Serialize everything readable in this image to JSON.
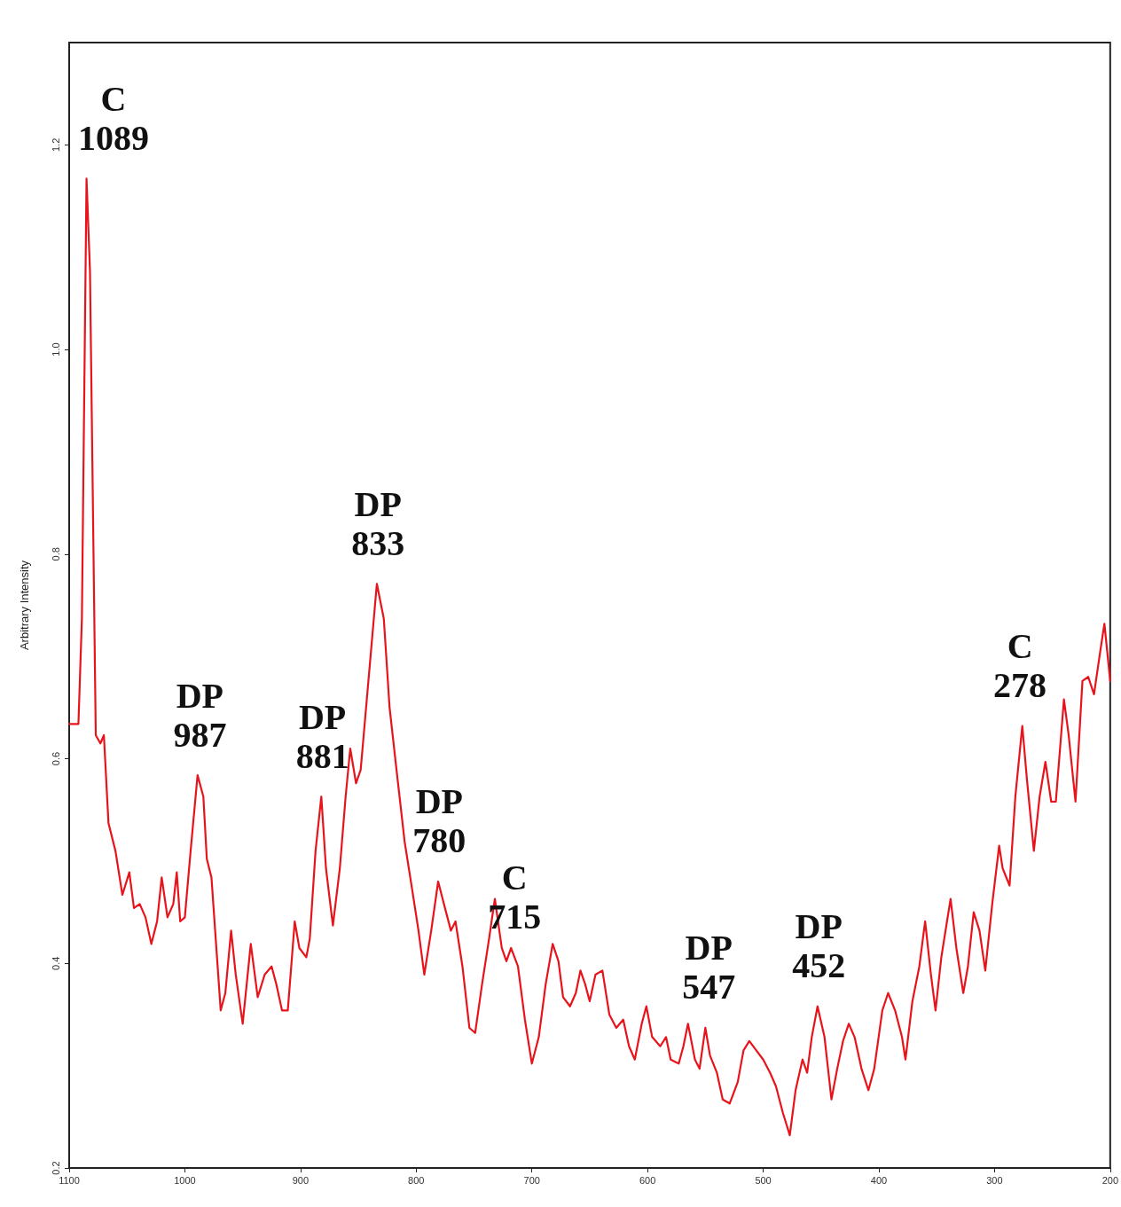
{
  "chart_data": {
    "type": "line",
    "ylabel": "Arbitrary Intensity",
    "x": [
      1100,
      1092,
      1089,
      1085,
      1082,
      1077,
      1073,
      1070,
      1066,
      1060,
      1054,
      1048,
      1044,
      1039,
      1034,
      1029,
      1024,
      1020,
      1015,
      1010,
      1007,
      1004,
      1000,
      995,
      989,
      984,
      981,
      977,
      969,
      965,
      960,
      956,
      950,
      943,
      937,
      931,
      925,
      921,
      916,
      911,
      905,
      901,
      895,
      892,
      887,
      882,
      878,
      872,
      866,
      861,
      857,
      852,
      848,
      842,
      834,
      828,
      823,
      817,
      810,
      804,
      798,
      793,
      787,
      781,
      776,
      770,
      766,
      760,
      754,
      749,
      743,
      737,
      732,
      726,
      722,
      718,
      712,
      706,
      700,
      694,
      688,
      682,
      677,
      673,
      667,
      662,
      658,
      654,
      650,
      645,
      639,
      633,
      627,
      621,
      616,
      611,
      605,
      601,
      596,
      589,
      584,
      580,
      573,
      569,
      565,
      559,
      555,
      550,
      546,
      540,
      535,
      529,
      522,
      517,
      512,
      506,
      500,
      494,
      489,
      483,
      477,
      472,
      466,
      462,
      458,
      453,
      447,
      441,
      436,
      431,
      426,
      421,
      415,
      409,
      404,
      397,
      392,
      386,
      380,
      377,
      371,
      365,
      360,
      355,
      351,
      346,
      338,
      333,
      327,
      323,
      318,
      313,
      308,
      302,
      296,
      293,
      287,
      282,
      276,
      272,
      266,
      261,
      256,
      251,
      247,
      240,
      236,
      230,
      224,
      219,
      214,
      209,
      205,
      200
    ],
    "series": [
      {
        "color": "#e8141c",
        "values": [
          0.634,
          0.634,
          0.737,
          1.167,
          1.076,
          0.623,
          0.615,
          0.623,
          0.537,
          0.51,
          0.467,
          0.489,
          0.454,
          0.458,
          0.445,
          0.419,
          0.441,
          0.484,
          0.445,
          0.458,
          0.489,
          0.441,
          0.445,
          0.51,
          0.584,
          0.563,
          0.502,
          0.484,
          0.354,
          0.371,
          0.432,
          0.389,
          0.341,
          0.419,
          0.367,
          0.389,
          0.397,
          0.38,
          0.354,
          0.354,
          0.441,
          0.415,
          0.406,
          0.424,
          0.51,
          0.563,
          0.493,
          0.437,
          0.493,
          0.563,
          0.61,
          0.576,
          0.589,
          0.667,
          0.771,
          0.737,
          0.65,
          0.589,
          0.519,
          0.476,
          0.432,
          0.389,
          0.432,
          0.48,
          0.458,
          0.432,
          0.441,
          0.397,
          0.337,
          0.332,
          0.38,
          0.424,
          0.463,
          0.415,
          0.402,
          0.415,
          0.397,
          0.345,
          0.302,
          0.328,
          0.38,
          0.419,
          0.402,
          0.367,
          0.358,
          0.371,
          0.393,
          0.38,
          0.363,
          0.389,
          0.393,
          0.35,
          0.337,
          0.345,
          0.319,
          0.306,
          0.341,
          0.358,
          0.328,
          0.319,
          0.328,
          0.306,
          0.302,
          0.319,
          0.341,
          0.306,
          0.297,
          0.337,
          0.31,
          0.293,
          0.267,
          0.263,
          0.284,
          0.315,
          0.324,
          0.315,
          0.306,
          0.293,
          0.28,
          0.254,
          0.232,
          0.276,
          0.306,
          0.293,
          0.328,
          0.358,
          0.328,
          0.267,
          0.297,
          0.324,
          0.341,
          0.328,
          0.297,
          0.276,
          0.297,
          0.354,
          0.371,
          0.354,
          0.328,
          0.306,
          0.363,
          0.397,
          0.441,
          0.389,
          0.354,
          0.406,
          0.463,
          0.415,
          0.371,
          0.397,
          0.45,
          0.432,
          0.393,
          0.458,
          0.515,
          0.493,
          0.476,
          0.563,
          0.632,
          0.58,
          0.51,
          0.563,
          0.597,
          0.558,
          0.558,
          0.658,
          0.624,
          0.558,
          0.676,
          0.68,
          0.663,
          0.702,
          0.732,
          0.676
        ]
      }
    ],
    "annotations": [
      {
        "text": "C\n1089",
        "x": 1089,
        "y": 1.167
      },
      {
        "text": "DP\n987",
        "x": 987,
        "y": 0.584
      },
      {
        "text": "DP\n881",
        "x": 881,
        "y": 0.563
      },
      {
        "text": "DP\n833",
        "x": 833,
        "y": 0.771
      },
      {
        "text": "DP\n780",
        "x": 780,
        "y": 0.48
      },
      {
        "text": "C\n715",
        "x": 715,
        "y": 0.406
      },
      {
        "text": "DP\n547",
        "x": 547,
        "y": 0.337
      },
      {
        "text": "DP\n452",
        "x": 452,
        "y": 0.358
      },
      {
        "text": "C\n278",
        "x": 278,
        "y": 0.632
      }
    ],
    "xlim": [
      1100,
      200
    ],
    "xticks": [
      1100,
      1000,
      900,
      800,
      700,
      600,
      500,
      400,
      300,
      200
    ],
    "ylim": [
      0.2,
      1.3
    ],
    "yticks": [
      0.2,
      0.4,
      0.6,
      0.8,
      {
        "value": 1.0,
        "label": "1.0"
      },
      1.2
    ],
    "grid": false,
    "marker": "none",
    "line_style": "solid"
  }
}
